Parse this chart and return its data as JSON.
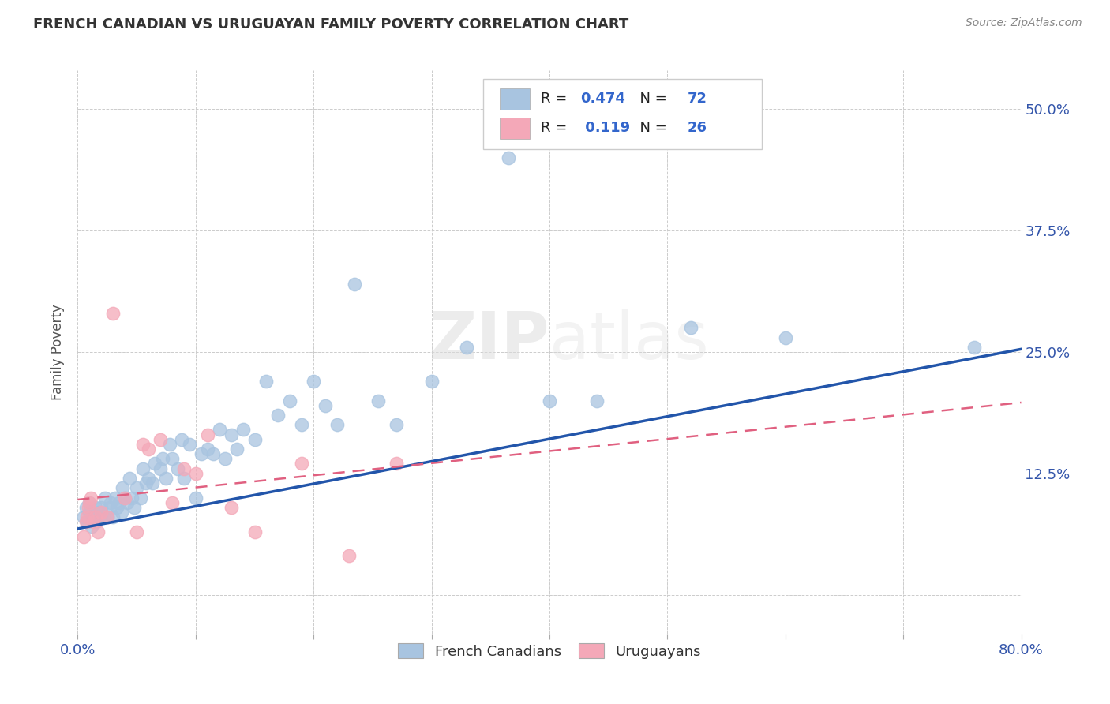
{
  "title": "FRENCH CANADIAN VS URUGUAYAN FAMILY POVERTY CORRELATION CHART",
  "source": "Source: ZipAtlas.com",
  "xlabel": "",
  "ylabel": "Family Poverty",
  "xlim": [
    0.0,
    0.8
  ],
  "ylim": [
    -0.04,
    0.54
  ],
  "xticks": [
    0.0,
    0.1,
    0.2,
    0.3,
    0.4,
    0.5,
    0.6,
    0.7,
    0.8
  ],
  "xticklabels": [
    "0.0%",
    "",
    "",
    "",
    "",
    "",
    "",
    "",
    "80.0%"
  ],
  "ytick_positions": [
    0.0,
    0.125,
    0.25,
    0.375,
    0.5
  ],
  "yticklabels": [
    "",
    "12.5%",
    "25.0%",
    "37.5%",
    "50.0%"
  ],
  "legend1_R": "0.474",
  "legend1_N": "72",
  "legend2_R": "0.119",
  "legend2_N": "26",
  "blue_color": "#A8C4E0",
  "pink_color": "#F4A8B8",
  "blue_line_color": "#2255AA",
  "pink_line_color": "#E06080",
  "watermark": "ZIPatlas",
  "fc_trend_x0": 0.0,
  "fc_trend_y0": 0.068,
  "fc_trend_x1": 0.8,
  "fc_trend_y1": 0.253,
  "ur_trend_x0": 0.0,
  "ur_trend_y0": 0.098,
  "ur_trend_x1": 0.8,
  "ur_trend_y1": 0.198,
  "french_canadian_x": [
    0.005,
    0.007,
    0.008,
    0.01,
    0.01,
    0.012,
    0.013,
    0.015,
    0.016,
    0.018,
    0.019,
    0.02,
    0.022,
    0.023,
    0.025,
    0.027,
    0.028,
    0.03,
    0.032,
    0.033,
    0.035,
    0.037,
    0.038,
    0.04,
    0.042,
    0.044,
    0.046,
    0.048,
    0.05,
    0.053,
    0.055,
    0.058,
    0.06,
    0.063,
    0.065,
    0.07,
    0.072,
    0.075,
    0.078,
    0.08,
    0.085,
    0.088,
    0.09,
    0.095,
    0.1,
    0.105,
    0.11,
    0.115,
    0.12,
    0.125,
    0.13,
    0.135,
    0.14,
    0.15,
    0.16,
    0.17,
    0.18,
    0.19,
    0.2,
    0.21,
    0.22,
    0.235,
    0.255,
    0.27,
    0.3,
    0.33,
    0.365,
    0.4,
    0.44,
    0.52,
    0.6,
    0.76
  ],
  "french_canadian_y": [
    0.08,
    0.09,
    0.075,
    0.085,
    0.095,
    0.07,
    0.08,
    0.09,
    0.075,
    0.085,
    0.08,
    0.09,
    0.08,
    0.1,
    0.08,
    0.09,
    0.095,
    0.08,
    0.1,
    0.09,
    0.095,
    0.085,
    0.11,
    0.1,
    0.095,
    0.12,
    0.1,
    0.09,
    0.11,
    0.1,
    0.13,
    0.115,
    0.12,
    0.115,
    0.135,
    0.13,
    0.14,
    0.12,
    0.155,
    0.14,
    0.13,
    0.16,
    0.12,
    0.155,
    0.1,
    0.145,
    0.15,
    0.145,
    0.17,
    0.14,
    0.165,
    0.15,
    0.17,
    0.16,
    0.22,
    0.185,
    0.2,
    0.175,
    0.22,
    0.195,
    0.175,
    0.32,
    0.2,
    0.175,
    0.22,
    0.255,
    0.45,
    0.2,
    0.2,
    0.275,
    0.265,
    0.255
  ],
  "uruguayan_x": [
    0.005,
    0.007,
    0.008,
    0.009,
    0.01,
    0.011,
    0.013,
    0.015,
    0.017,
    0.02,
    0.025,
    0.03,
    0.04,
    0.05,
    0.055,
    0.06,
    0.07,
    0.08,
    0.09,
    0.1,
    0.11,
    0.13,
    0.15,
    0.19,
    0.23,
    0.27
  ],
  "uruguayan_y": [
    0.06,
    0.075,
    0.08,
    0.09,
    0.095,
    0.1,
    0.075,
    0.08,
    0.065,
    0.085,
    0.08,
    0.29,
    0.1,
    0.065,
    0.155,
    0.15,
    0.16,
    0.095,
    0.13,
    0.125,
    0.165,
    0.09,
    0.065,
    0.135,
    0.04,
    0.135
  ]
}
